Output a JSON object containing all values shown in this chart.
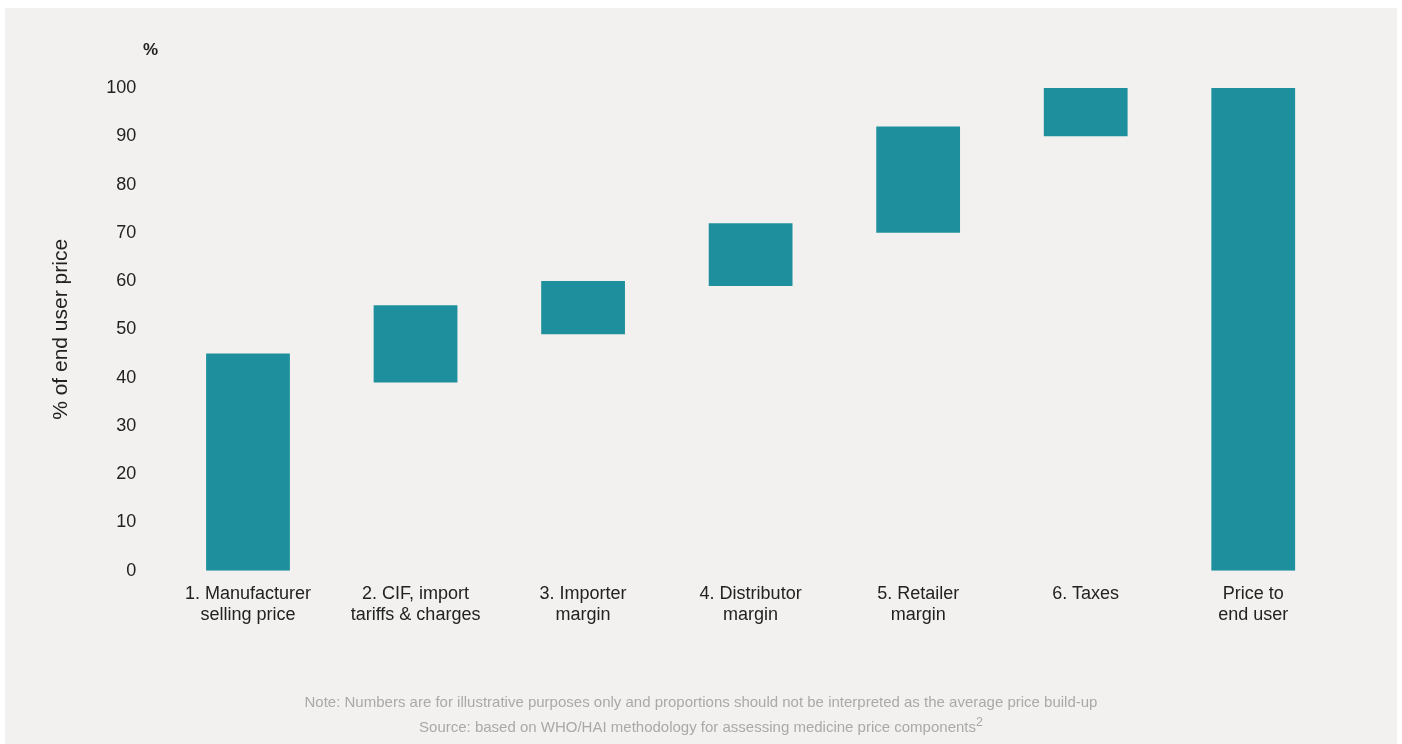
{
  "chart_data": {
    "type": "bar",
    "ylabel": "% of end user price",
    "categories": [
      "1. Manufacturer selling price",
      "2. CIF, import tariffs & charges",
      "3. Importer margin",
      "4. Distributor margin",
      "5. Retailer margin",
      "6. Taxes",
      "Price to end user"
    ],
    "values": [
      45,
      16,
      11,
      13,
      22,
      10,
      100
    ],
    "base": [
      0,
      39,
      49,
      59,
      70,
      90,
      0
    ],
    "color": "#1e8f9c",
    "ylim": [
      0,
      100
    ],
    "yticks": [
      0,
      10,
      20,
      30,
      40,
      50,
      60,
      70,
      80,
      90,
      100
    ],
    "grid": false,
    "legend": false,
    "annotations": [
      "%",
      "Note: Numbers are for illustrative purposes only and proportions should not be interpreted as the average price build-up",
      "Source: based on WHO/HAI methodology for assessing medicine price components$^{2}$"
    ]
  }
}
